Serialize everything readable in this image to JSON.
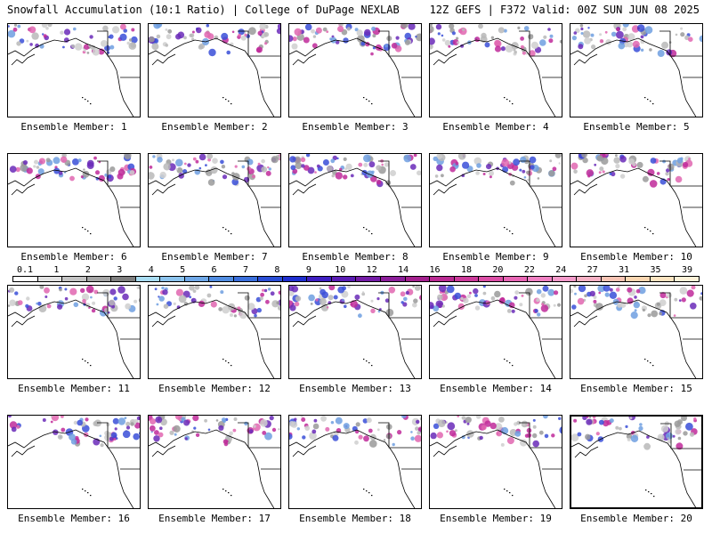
{
  "header": {
    "title": "Snowfall Accumulation (10:1 Ratio) | College of DuPage NEXLAB",
    "run_info": "12Z GEFS | F372 Valid: 00Z SUN JUN 08 2025"
  },
  "members": [
    {
      "label": "Ensemble Member: 1"
    },
    {
      "label": "Ensemble Member: 2"
    },
    {
      "label": "Ensemble Member: 3"
    },
    {
      "label": "Ensemble Member: 4"
    },
    {
      "label": "Ensemble Member: 5"
    },
    {
      "label": "Ensemble Member: 6"
    },
    {
      "label": "Ensemble Member: 7"
    },
    {
      "label": "Ensemble Member: 8"
    },
    {
      "label": "Ensemble Member: 9"
    },
    {
      "label": "Ensemble Member: 10"
    },
    {
      "label": "Ensemble Member: 11"
    },
    {
      "label": "Ensemble Member: 12"
    },
    {
      "label": "Ensemble Member: 13"
    },
    {
      "label": "Ensemble Member: 14"
    },
    {
      "label": "Ensemble Member: 15"
    },
    {
      "label": "Ensemble Member: 16"
    },
    {
      "label": "Ensemble Member: 17"
    },
    {
      "label": "Ensemble Member: 18"
    },
    {
      "label": "Ensemble Member: 19"
    },
    {
      "label": "Ensemble Member: 20"
    }
  ],
  "colorbar": {
    "labels": [
      "0.1",
      "1",
      "2",
      "3",
      "4",
      "5",
      "6",
      "7",
      "8",
      "9",
      "10",
      "12",
      "14",
      "16",
      "18",
      "20",
      "22",
      "24",
      "27",
      "31",
      "35",
      "39"
    ],
    "colors": [
      "#ffffff",
      "#e2e2e2",
      "#c4c4c4",
      "#a6a6a6",
      "#7f7f7f",
      "#a9ddf2",
      "#8cc4ee",
      "#6fa8e8",
      "#518de2",
      "#3a6fdc",
      "#2a4ed6",
      "#1f2fd0",
      "#3f1fc2",
      "#5a1cb4",
      "#741ca6",
      "#8c1e9a",
      "#a4208e",
      "#ba2a92",
      "#cc3a9a",
      "#dc4ea6",
      "#e866b4",
      "#f080c2",
      "#f49aca",
      "#f6b0c4",
      "#f8c4b4",
      "#fad6b0",
      "#fce4c0",
      "#fef2d8"
    ]
  }
}
